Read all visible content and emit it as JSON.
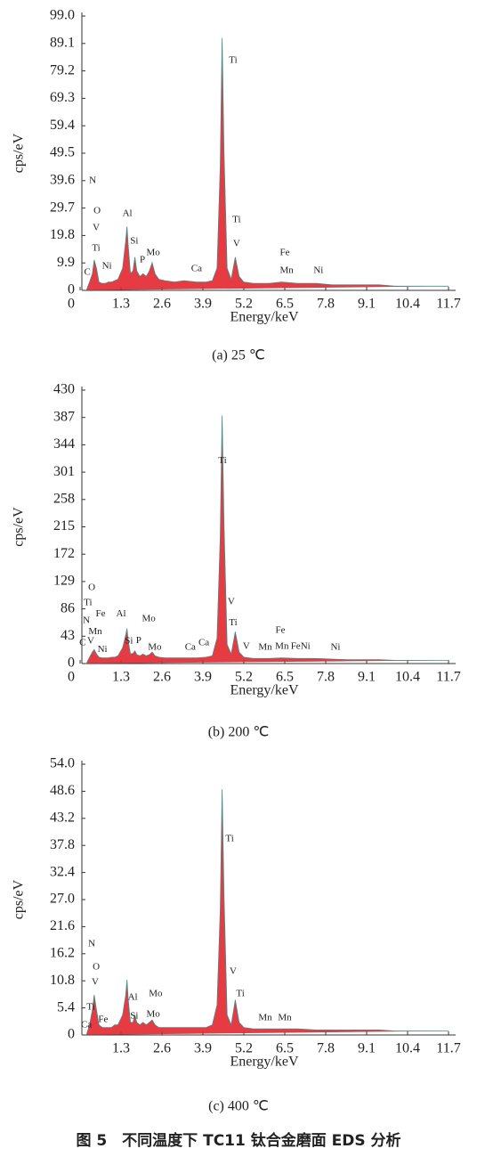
{
  "chart_data": [
    {
      "type": "line",
      "caption": "(a) 25 ℃",
      "x_label": "Energy/keV",
      "y_label": "cps/eV",
      "color": "#e3262e",
      "outline": "#3f8f8a",
      "xlim": [
        0,
        11.7
      ],
      "xticks": [
        0,
        1.3,
        2.6,
        3.9,
        5.2,
        6.5,
        7.8,
        9.1,
        10.4,
        11.7
      ],
      "ylim": [
        0,
        99
      ],
      "yticks": [
        0,
        9.9,
        19.8,
        29.7,
        39.6,
        49.5,
        59.4,
        69.3,
        79.2,
        89.1,
        {
          "value": 99,
          "label": "99.0"
        }
      ],
      "x": [
        0.2,
        0.3,
        0.39,
        0.45,
        0.52,
        0.6,
        0.7,
        0.8,
        0.9,
        1.0,
        1.1,
        1.2,
        1.35,
        1.45,
        1.49,
        1.53,
        1.6,
        1.68,
        1.74,
        1.8,
        1.9,
        2.0,
        2.1,
        2.2,
        2.29,
        2.38,
        2.5,
        2.7,
        3.0,
        3.3,
        3.7,
        4.0,
        4.2,
        4.35,
        4.45,
        4.51,
        4.57,
        4.67,
        4.8,
        4.93,
        5.05,
        5.2,
        5.5,
        6.0,
        6.4,
        6.9,
        7.5,
        8.0,
        8.5,
        9.0,
        9.5,
        10.0,
        10.5,
        11.0,
        11.7
      ],
      "values": [
        0,
        3,
        6,
        11,
        8,
        3,
        2.5,
        2.5,
        3,
        3,
        3.5,
        4,
        8,
        18,
        23,
        16,
        6,
        7,
        12,
        7,
        5,
        6,
        5,
        7,
        10,
        6,
        4,
        3.5,
        3,
        3.5,
        3,
        3,
        3.5,
        8,
        45,
        91,
        50,
        8,
        4,
        12,
        5,
        3,
        2.5,
        2.5,
        3,
        2.5,
        2.5,
        2,
        2,
        2,
        2,
        1.5,
        1.5,
        1.5,
        1.5
      ],
      "annotations": [
        {
          "text": "Ti",
          "x": 4.86,
          "y": 82.9
        },
        {
          "text": "N",
          "x": 0.4,
          "y": 39.5
        },
        {
          "text": "O",
          "x": 0.54,
          "y": 28.6
        },
        {
          "text": "V",
          "x": 0.51,
          "y": 22.5
        },
        {
          "text": "Ti",
          "x": 0.51,
          "y": 15.1
        },
        {
          "text": "Ni",
          "x": 0.85,
          "y": 8.7
        },
        {
          "text": "C",
          "x": 0.23,
          "y": 6.4
        },
        {
          "text": "Al",
          "x": 1.5,
          "y": 27.6
        },
        {
          "text": "Si",
          "x": 1.72,
          "y": 17.7
        },
        {
          "text": "P",
          "x": 1.98,
          "y": 10.9
        },
        {
          "text": "Mo",
          "x": 2.32,
          "y": 13.5
        },
        {
          "text": "Ca",
          "x": 3.7,
          "y": 7.7
        },
        {
          "text": "Ti",
          "x": 4.97,
          "y": 25.4
        },
        {
          "text": "V",
          "x": 4.97,
          "y": 16.7
        },
        {
          "text": "Fe",
          "x": 6.5,
          "y": 13.5
        },
        {
          "text": "Mn",
          "x": 6.56,
          "y": 7.1
        },
        {
          "text": "Ni",
          "x": 7.57,
          "y": 7.1
        }
      ]
    },
    {
      "type": "line",
      "caption": "(b) 200 ℃",
      "x_label": "Energy/keV",
      "y_label": "cps/eV",
      "color": "#e3262e",
      "outline": "#3f8f8a",
      "xlim": [
        0,
        11.7
      ],
      "xticks": [
        0,
        1.3,
        2.6,
        3.9,
        5.2,
        6.5,
        7.8,
        9.1,
        10.4,
        11.7
      ],
      "ylim": [
        0,
        430
      ],
      "yticks": [
        0,
        43,
        86,
        129,
        172,
        215,
        258,
        301,
        344,
        387,
        430
      ],
      "x": [
        0.2,
        0.3,
        0.39,
        0.45,
        0.52,
        0.6,
        0.7,
        0.8,
        0.9,
        1.0,
        1.1,
        1.2,
        1.35,
        1.45,
        1.49,
        1.53,
        1.6,
        1.68,
        1.74,
        1.8,
        1.9,
        2.0,
        2.1,
        2.2,
        2.29,
        2.38,
        2.5,
        2.7,
        3.0,
        3.3,
        3.7,
        4.0,
        4.2,
        4.35,
        4.45,
        4.51,
        4.57,
        4.67,
        4.8,
        4.93,
        5.05,
        5.2,
        5.5,
        6.0,
        6.4,
        6.9,
        7.5,
        8.0,
        8.5,
        9.0,
        9.5,
        10.0,
        10.5,
        11.0,
        11.7
      ],
      "values": [
        0,
        10,
        18,
        22,
        15,
        10,
        9,
        9,
        9,
        10,
        10,
        12,
        25,
        45,
        55,
        35,
        15,
        16,
        20,
        14,
        12,
        15,
        12,
        14,
        18,
        12,
        10,
        9,
        9,
        9,
        9,
        10,
        12,
        40,
        200,
        390,
        220,
        30,
        15,
        50,
        18,
        10,
        8,
        8,
        9,
        8,
        8,
        7,
        6,
        6,
        6,
        5,
        5,
        5,
        5
      ],
      "annotations": [
        {
          "text": "Ti",
          "x": 4.52,
          "y": 319
        },
        {
          "text": "O",
          "x": 0.37,
          "y": 119
        },
        {
          "text": "Ti",
          "x": 0.25,
          "y": 95
        },
        {
          "text": "Fe",
          "x": 0.65,
          "y": 78
        },
        {
          "text": "N",
          "x": 0.2,
          "y": 67
        },
        {
          "text": "Mn",
          "x": 0.48,
          "y": 50
        },
        {
          "text": "C",
          "x": 0.08,
          "y": 32
        },
        {
          "text": "V",
          "x": 0.34,
          "y": 35
        },
        {
          "text": "Ni",
          "x": 0.71,
          "y": 22
        },
        {
          "text": "Al",
          "x": 1.3,
          "y": 78
        },
        {
          "text": "Si",
          "x": 1.55,
          "y": 35
        },
        {
          "text": "P",
          "x": 1.86,
          "y": 36
        },
        {
          "text": "Mo",
          "x": 2.18,
          "y": 70
        },
        {
          "text": "Mo",
          "x": 2.37,
          "y": 25
        },
        {
          "text": "Ca",
          "x": 3.5,
          "y": 25
        },
        {
          "text": "Ca",
          "x": 3.93,
          "y": 32
        },
        {
          "text": "V",
          "x": 4.8,
          "y": 97
        },
        {
          "text": "Ti",
          "x": 4.86,
          "y": 64
        },
        {
          "text": "V",
          "x": 5.28,
          "y": 27
        },
        {
          "text": "Fe",
          "x": 6.36,
          "y": 52
        },
        {
          "text": "Mn",
          "x": 5.88,
          "y": 25
        },
        {
          "text": "Mn",
          "x": 6.41,
          "y": 27
        },
        {
          "text": "FeNi",
          "x": 7.0,
          "y": 27
        },
        {
          "text": "Ni",
          "x": 8.11,
          "y": 25
        }
      ]
    },
    {
      "type": "line",
      "caption": "(c) 400 ℃",
      "x_label": "Energy/keV",
      "y_label": "cps/eV",
      "color": "#e3262e",
      "outline": "#3f8f8a",
      "xlim": [
        0,
        11.7
      ],
      "xticks": [
        1.3,
        2.6,
        3.9,
        5.2,
        6.5,
        7.8,
        9.1,
        10.4,
        11.7
      ],
      "ylim": [
        0,
        54
      ],
      "yticks": [
        0,
        5.4,
        10.8,
        16.2,
        21.6,
        {
          "value": 27,
          "label": "27.0"
        },
        32.4,
        37.8,
        43.2,
        48.6,
        {
          "value": 54,
          "label": "54.0"
        }
      ],
      "x": [
        0.2,
        0.3,
        0.39,
        0.45,
        0.52,
        0.6,
        0.7,
        0.8,
        0.9,
        1.0,
        1.1,
        1.2,
        1.35,
        1.45,
        1.49,
        1.53,
        1.6,
        1.68,
        1.74,
        1.8,
        1.9,
        2.0,
        2.1,
        2.2,
        2.29,
        2.38,
        2.5,
        2.7,
        3.0,
        3.3,
        3.7,
        4.0,
        4.2,
        4.35,
        4.45,
        4.51,
        4.57,
        4.67,
        4.8,
        4.93,
        5.05,
        5.2,
        5.5,
        6.0,
        6.4,
        6.9,
        7.5,
        8.0,
        8.5,
        9.0,
        9.5,
        10.0,
        10.5,
        11.0,
        11.7
      ],
      "values": [
        0,
        2,
        5,
        8,
        5,
        2,
        1.5,
        1.5,
        1.5,
        1.5,
        2,
        2,
        4,
        8,
        11,
        7,
        2.5,
        2.5,
        4,
        2.5,
        2,
        2.5,
        2,
        2.5,
        3,
        2,
        1.5,
        1.5,
        1.5,
        1.5,
        1.5,
        1.5,
        2,
        6,
        25,
        49,
        28,
        4,
        2,
        7,
        2.5,
        1.5,
        1.2,
        1.2,
        1.2,
        1.2,
        1,
        1,
        1,
        1,
        1,
        0.8,
        0.8,
        0.8,
        0.8
      ],
      "annotations": [
        {
          "text": "Ti",
          "x": 4.75,
          "y": 39.1
        },
        {
          "text": "N",
          "x": 0.37,
          "y": 18.1
        },
        {
          "text": "O",
          "x": 0.51,
          "y": 13.5
        },
        {
          "text": "V",
          "x": 0.48,
          "y": 10.5
        },
        {
          "text": "Ti",
          "x": 0.34,
          "y": 5.5
        },
        {
          "text": "Ca",
          "x": 0.2,
          "y": 2
        },
        {
          "text": "Fe",
          "x": 0.73,
          "y": 3
        },
        {
          "text": "Al",
          "x": 1.67,
          "y": 7.5
        },
        {
          "text": "Si",
          "x": 1.72,
          "y": 3.7
        },
        {
          "text": "Mo",
          "x": 2.4,
          "y": 8.2
        },
        {
          "text": "Mo",
          "x": 2.32,
          "y": 4.1
        },
        {
          "text": "V",
          "x": 4.86,
          "y": 12.6
        },
        {
          "text": "Ti",
          "x": 5.09,
          "y": 8.2
        },
        {
          "text": "Mn",
          "x": 5.88,
          "y": 3.4
        },
        {
          "text": "Mn",
          "x": 6.5,
          "y": 3.4
        }
      ]
    }
  ],
  "figure_caption": "图 5　不同温度下 TC11 钛合金磨面 EDS 分析"
}
